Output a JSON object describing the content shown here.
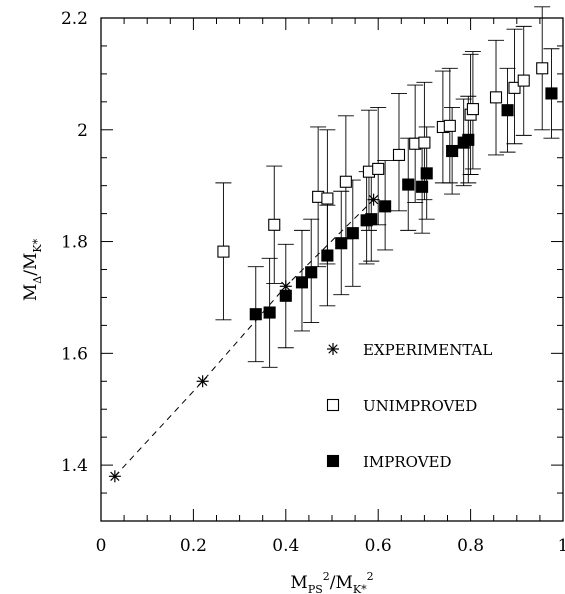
{
  "chart_data": {
    "type": "scatter",
    "xlim": [
      0,
      1
    ],
    "ylim": [
      1.3,
      2.2
    ],
    "x_ticks": [
      {
        "value": 0,
        "label": "0"
      },
      {
        "value": 0.2,
        "label": "0.2"
      },
      {
        "value": 0.4,
        "label": "0.4"
      },
      {
        "value": 0.6,
        "label": "0.6"
      },
      {
        "value": 0.8,
        "label": "0.8"
      },
      {
        "value": 1,
        "label": "1"
      }
    ],
    "y_ticks": [
      {
        "value": 1.4,
        "label": "1.4"
      },
      {
        "value": 1.6,
        "label": "1.6"
      },
      {
        "value": 1.8,
        "label": "1.8"
      },
      {
        "value": 2,
        "label": "2"
      },
      {
        "value": 2.2,
        "label": "2.2"
      }
    ],
    "xlabel": {
      "main": "M",
      "sub1": "PS",
      "sup1": "2",
      "slash": "/M",
      "sub2": "K*",
      "sup2": "2"
    },
    "ylabel": {
      "main": "M",
      "sub1": "Δ",
      "slash": "/M",
      "sub2": "K*"
    },
    "grid": false,
    "legend_position": "inside lower-right",
    "series": [
      {
        "name": "EXPERIMENTAL",
        "marker": "asterisk",
        "connected_dashed": true,
        "points": [
          {
            "x": 0.03,
            "y": 1.38
          },
          {
            "x": 0.22,
            "y": 1.55
          },
          {
            "x": 0.4,
            "y": 1.72
          },
          {
            "x": 0.59,
            "y": 1.875
          }
        ]
      },
      {
        "name": "UNIMPROVED",
        "marker": "open-square",
        "points": [
          {
            "x": 0.265,
            "y": 1.782,
            "lo": 1.66,
            "hi": 1.905
          },
          {
            "x": 0.375,
            "y": 1.83,
            "lo": 1.725,
            "hi": 1.935
          },
          {
            "x": 0.47,
            "y": 1.88,
            "lo": 1.755,
            "hi": 2.005
          },
          {
            "x": 0.49,
            "y": 1.877,
            "lo": 1.76,
            "hi": 2.0
          },
          {
            "x": 0.53,
            "y": 1.907,
            "lo": 1.805,
            "hi": 2.025
          },
          {
            "x": 0.58,
            "y": 1.925,
            "lo": 1.82,
            "hi": 2.035
          },
          {
            "x": 0.6,
            "y": 1.93,
            "lo": 1.83,
            "hi": 2.04
          },
          {
            "x": 0.645,
            "y": 1.955,
            "lo": 1.855,
            "hi": 2.065
          },
          {
            "x": 0.68,
            "y": 1.975,
            "lo": 1.87,
            "hi": 2.08
          },
          {
            "x": 0.7,
            "y": 1.977,
            "lo": 1.875,
            "hi": 2.085
          },
          {
            "x": 0.74,
            "y": 2.005,
            "lo": 1.905,
            "hi": 2.105
          },
          {
            "x": 0.755,
            "y": 2.007,
            "lo": 1.905,
            "hi": 2.11
          },
          {
            "x": 0.8,
            "y": 2.027,
            "lo": 1.92,
            "hi": 2.135
          },
          {
            "x": 0.805,
            "y": 2.037,
            "lo": 1.93,
            "hi": 2.14
          },
          {
            "x": 0.855,
            "y": 2.058,
            "lo": 1.955,
            "hi": 2.16
          },
          {
            "x": 0.895,
            "y": 2.075,
            "lo": 1.975,
            "hi": 2.18
          },
          {
            "x": 0.915,
            "y": 2.088,
            "lo": 1.99,
            "hi": 2.185
          },
          {
            "x": 0.955,
            "y": 2.11,
            "lo": 2.0,
            "hi": 2.22
          }
        ]
      },
      {
        "name": "IMPROVED",
        "marker": "filled-square",
        "points": [
          {
            "x": 0.335,
            "y": 1.67,
            "lo": 1.585,
            "hi": 1.755
          },
          {
            "x": 0.365,
            "y": 1.673,
            "lo": 1.575,
            "hi": 1.77
          },
          {
            "x": 0.4,
            "y": 1.703,
            "lo": 1.61,
            "hi": 1.795
          },
          {
            "x": 0.435,
            "y": 1.727,
            "lo": 1.64,
            "hi": 1.82
          },
          {
            "x": 0.455,
            "y": 1.745,
            "lo": 1.655,
            "hi": 1.84
          },
          {
            "x": 0.49,
            "y": 1.775,
            "lo": 1.685,
            "hi": 1.865
          },
          {
            "x": 0.52,
            "y": 1.797,
            "lo": 1.705,
            "hi": 1.89
          },
          {
            "x": 0.545,
            "y": 1.815,
            "lo": 1.72,
            "hi": 1.91
          },
          {
            "x": 0.575,
            "y": 1.838,
            "lo": 1.76,
            "hi": 1.925
          },
          {
            "x": 0.585,
            "y": 1.84,
            "lo": 1.765,
            "hi": 1.93
          },
          {
            "x": 0.615,
            "y": 1.863,
            "lo": 1.785,
            "hi": 1.945
          },
          {
            "x": 0.665,
            "y": 1.902,
            "lo": 1.82,
            "hi": 1.985
          },
          {
            "x": 0.695,
            "y": 1.898,
            "lo": 1.815,
            "hi": 1.985
          },
          {
            "x": 0.705,
            "y": 1.922,
            "lo": 1.84,
            "hi": 2.005
          },
          {
            "x": 0.76,
            "y": 1.962,
            "lo": 1.885,
            "hi": 2.04
          },
          {
            "x": 0.785,
            "y": 1.977,
            "lo": 1.9,
            "hi": 2.055
          },
          {
            "x": 0.795,
            "y": 1.982,
            "lo": 1.905,
            "hi": 2.06
          },
          {
            "x": 0.88,
            "y": 2.035,
            "lo": 1.96,
            "hi": 2.11
          },
          {
            "x": 0.975,
            "y": 2.065,
            "lo": 1.985,
            "hi": 2.145
          }
        ]
      }
    ]
  }
}
